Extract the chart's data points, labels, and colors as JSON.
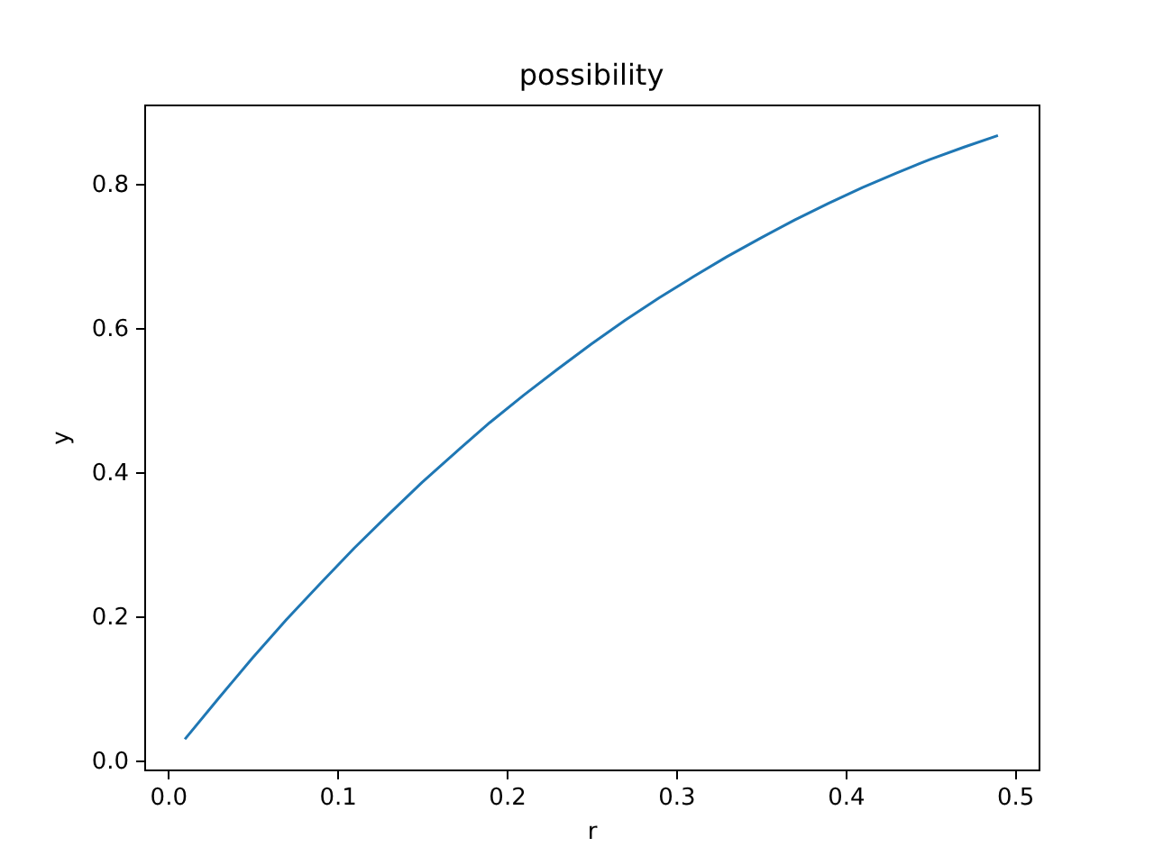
{
  "chart_data": {
    "type": "line",
    "title": "possibility",
    "xlabel": "r",
    "ylabel": "y",
    "x": [
      0.01,
      0.03,
      0.05,
      0.07,
      0.09,
      0.11,
      0.13,
      0.15,
      0.17,
      0.19,
      0.21,
      0.23,
      0.25,
      0.27,
      0.29,
      0.31,
      0.33,
      0.35,
      0.37,
      0.39,
      0.41,
      0.43,
      0.45,
      0.47,
      0.49
    ],
    "series": [
      {
        "color": "#1f77b4",
        "values": [
          0.03,
          0.087,
          0.143,
          0.196,
          0.246,
          0.295,
          0.341,
          0.386,
          0.428,
          0.469,
          0.507,
          0.543,
          0.578,
          0.611,
          0.642,
          0.671,
          0.699,
          0.725,
          0.75,
          0.773,
          0.795,
          0.815,
          0.834,
          0.851,
          0.867
        ]
      }
    ],
    "xlim": [
      -0.014,
      0.514
    ],
    "ylim": [
      -0.012,
      0.91
    ],
    "xticks": [
      {
        "value": 0,
        "label": "0.0"
      },
      0.1,
      0.2,
      0.3,
      0.4,
      0.5
    ],
    "yticks": [
      {
        "value": 0,
        "label": "0.0"
      },
      0.2,
      0.4,
      0.6,
      0.8
    ],
    "line_style": "solid"
  }
}
